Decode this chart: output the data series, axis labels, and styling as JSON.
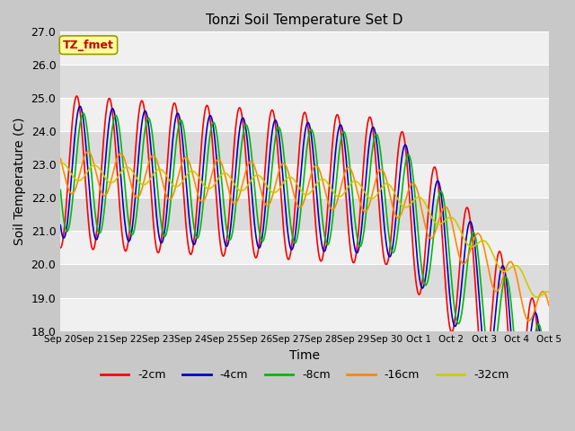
{
  "title": "Tonzi Soil Temperature Set D",
  "xlabel": "Time",
  "ylabel": "Soil Temperature (C)",
  "ylim": [
    18.0,
    27.0
  ],
  "yticks": [
    18.0,
    19.0,
    20.0,
    21.0,
    22.0,
    23.0,
    24.0,
    25.0,
    26.0,
    27.0
  ],
  "xtick_labels": [
    "Sep 20",
    "Sep 21",
    "Sep 22",
    "Sep 23",
    "Sep 24",
    "Sep 25",
    "Sep 26",
    "Sep 27",
    "Sep 28",
    "Sep 29",
    "Sep 30",
    "Oct 1",
    "Oct 2",
    "Oct 3",
    "Oct 4",
    "Oct 5"
  ],
  "legend_labels": [
    "-2cm",
    "-4cm",
    "-8cm",
    "-16cm",
    "-32cm"
  ],
  "line_colors": [
    "#ff0000",
    "#0000cc",
    "#00bb00",
    "#ff8800",
    "#cccc00"
  ],
  "annotation_text": "TZ_fmet",
  "annotation_color": "#cc0000",
  "annotation_bg": "#ffff99",
  "annotation_border": "#999900",
  "figsize": [
    6.4,
    4.8
  ],
  "dpi": 100
}
